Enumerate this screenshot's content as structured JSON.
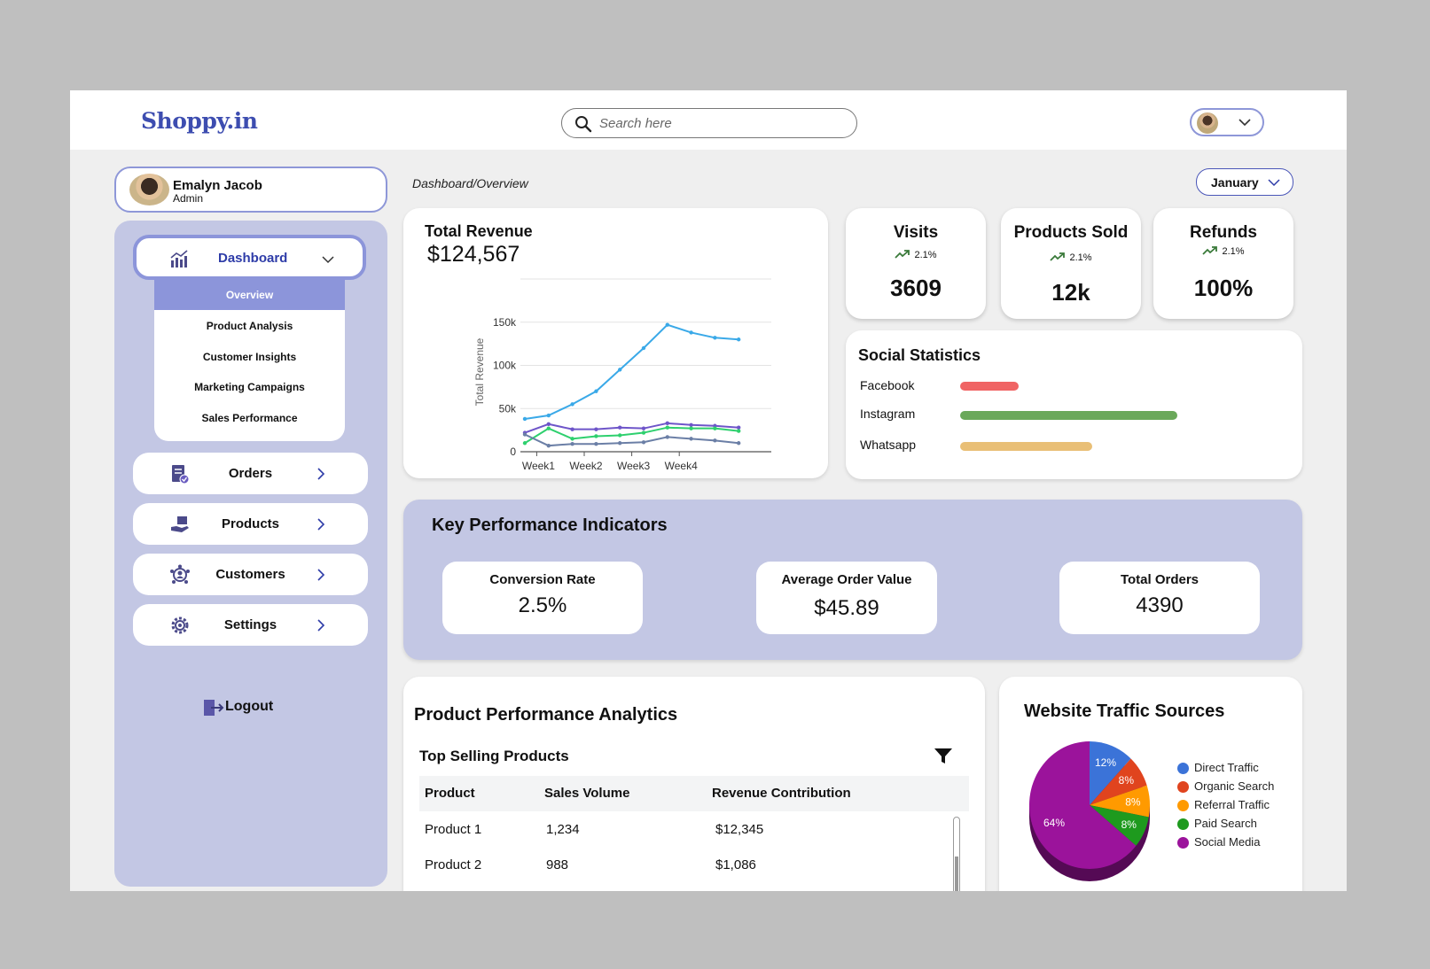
{
  "app": {
    "logo": "Shoppy.in"
  },
  "search": {
    "placeholder": "Search here"
  },
  "user": {
    "name": "Emalyn Jacob",
    "role": "Admin"
  },
  "sidebar": {
    "dashboard_label": "Dashboard",
    "submenu": [
      "Overview",
      "Product Analysis",
      "Customer Insights",
      "Marketing Campaigns",
      "Sales Performance"
    ],
    "items": [
      {
        "label": "Orders",
        "icon": "orders-icon"
      },
      {
        "label": "Products",
        "icon": "products-icon"
      },
      {
        "label": "Customers",
        "icon": "customers-icon"
      },
      {
        "label": "Settings",
        "icon": "settings-icon"
      }
    ],
    "logout_label": "Logout"
  },
  "breadcrumb": "Dashboard/Overview",
  "month_selector": {
    "value": "January"
  },
  "revenue": {
    "title": "Total Revenue",
    "value": "$124,567",
    "chart_data": {
      "type": "line",
      "categories": [
        "Week1",
        "Week2",
        "Week3",
        "Week4"
      ],
      "ylabel": "Total Revenue",
      "ytick_labels": [
        "0",
        "50k",
        "100k",
        "150k"
      ],
      "ylim": [
        0,
        200000
      ],
      "x": [
        0,
        0.5,
        1,
        1.5,
        2,
        2.5,
        3,
        3.5,
        4,
        4.5
      ],
      "series": [
        {
          "color": "#3aa9e8",
          "values": [
            38000,
            42000,
            55000,
            70000,
            95000,
            120000,
            147000,
            138000,
            132000,
            130000
          ]
        },
        {
          "color": "#6e55c9",
          "values": [
            22000,
            32000,
            26000,
            26000,
            28000,
            27000,
            33000,
            31000,
            30000,
            28000
          ]
        },
        {
          "color": "#2ed06e",
          "values": [
            10000,
            27000,
            15000,
            18000,
            19000,
            22000,
            28000,
            27000,
            27000,
            24000
          ]
        },
        {
          "color": "#6b7fa6",
          "values": [
            20000,
            7000,
            9000,
            9000,
            10000,
            11000,
            17000,
            15000,
            13000,
            10000
          ]
        }
      ]
    }
  },
  "stats": [
    {
      "title": "Visits",
      "trend": "2.1%",
      "value": "3609"
    },
    {
      "title": "Products Sold",
      "trend": "2.1%",
      "value": "12k"
    },
    {
      "title": "Refunds",
      "trend": "2.1%",
      "value": "100%"
    }
  ],
  "social": {
    "title": "Social Statistics",
    "rows": [
      {
        "label": "Facebook",
        "value": 0.27,
        "color": "#f06464"
      },
      {
        "label": "Instagram",
        "value": 1.0,
        "color": "#6aa85a"
      },
      {
        "label": "Whatsapp",
        "value": 0.61,
        "color": "#e9bf76"
      }
    ]
  },
  "kpi": {
    "title": "Key Performance Indicators",
    "boxes": [
      {
        "label": "Conversion Rate",
        "value": "2.5%"
      },
      {
        "label": "Average Order Value",
        "value": "$45.89"
      },
      {
        "label": "Total Orders",
        "value": "4390"
      }
    ]
  },
  "ppa": {
    "title": "Product Performance Analytics",
    "subtitle": "Top Selling Products",
    "columns": [
      "Product",
      "Sales Volume",
      "Revenue Contribution"
    ],
    "rows": [
      [
        "Product 1",
        "1,234",
        "$12,345"
      ],
      [
        "Product 2",
        "988",
        "$1,086"
      ]
    ]
  },
  "traffic": {
    "title": "Website Traffic Sources",
    "chart_data": {
      "type": "pie",
      "slices": [
        {
          "label": "Direct Traffic",
          "value": 12,
          "text": "12%",
          "color": "#3b73d8"
        },
        {
          "label": "Organic Search",
          "value": 8,
          "text": "8%",
          "color": "#e0441e"
        },
        {
          "label": "Referral Traffic",
          "value": 8,
          "text": "8%",
          "color": "#ff9a00"
        },
        {
          "label": "Paid Search",
          "value": 8,
          "text": "8%",
          "color": "#1e9a1e"
        },
        {
          "label": "Social Media",
          "value": 64,
          "text": "64%",
          "color": "#9b139b"
        }
      ]
    }
  }
}
